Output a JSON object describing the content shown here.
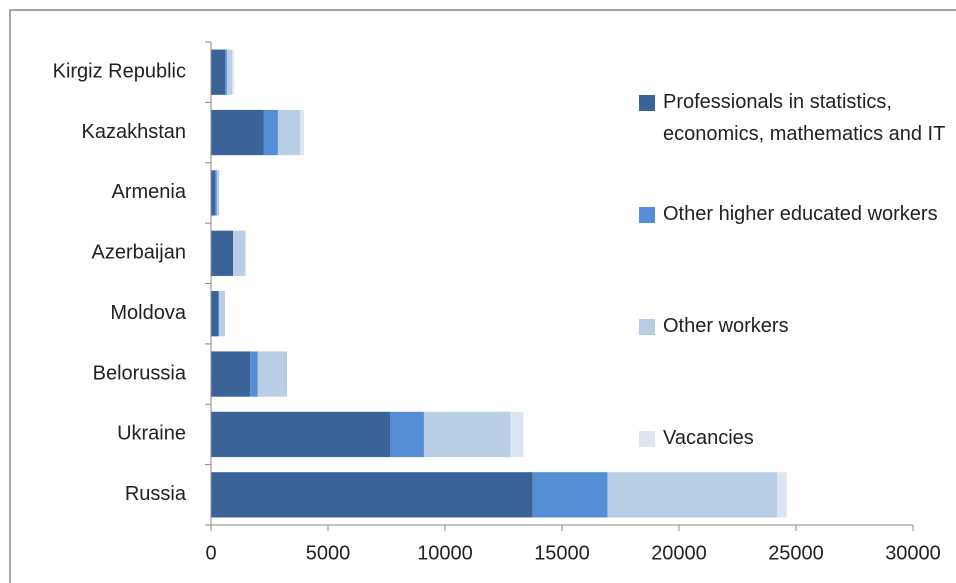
{
  "chart_data": {
    "type": "stacked-bar-horizontal",
    "categories": [
      "Kirgiz Republic",
      "Kazakhstan",
      "Armenia",
      "Azerbaijan",
      "Moldova",
      "Belorussia",
      "Ukraine",
      "Russia"
    ],
    "series": [
      {
        "name": "Professionals in statistics, economics, mathematics and IT",
        "color": "#3a6397",
        "values": [
          600,
          2260,
          170,
          940,
          300,
          1670,
          7650,
          13750
        ]
      },
      {
        "name": "Other higher educated workers",
        "color": "#558ed5",
        "values": [
          80,
          600,
          80,
          0,
          50,
          330,
          1450,
          3200
        ]
      },
      {
        "name": "Other workers",
        "color": "#b9cde5",
        "values": [
          220,
          940,
          100,
          510,
          250,
          1250,
          3700,
          7250
        ]
      },
      {
        "name": "Vacancies",
        "color": "#dce6f2",
        "values": [
          80,
          170,
          0,
          50,
          0,
          0,
          550,
          400
        ]
      }
    ],
    "xlim": [
      0,
      30000
    ],
    "xticks": [
      0,
      5000,
      10000,
      15000,
      20000,
      25000,
      30000
    ]
  }
}
